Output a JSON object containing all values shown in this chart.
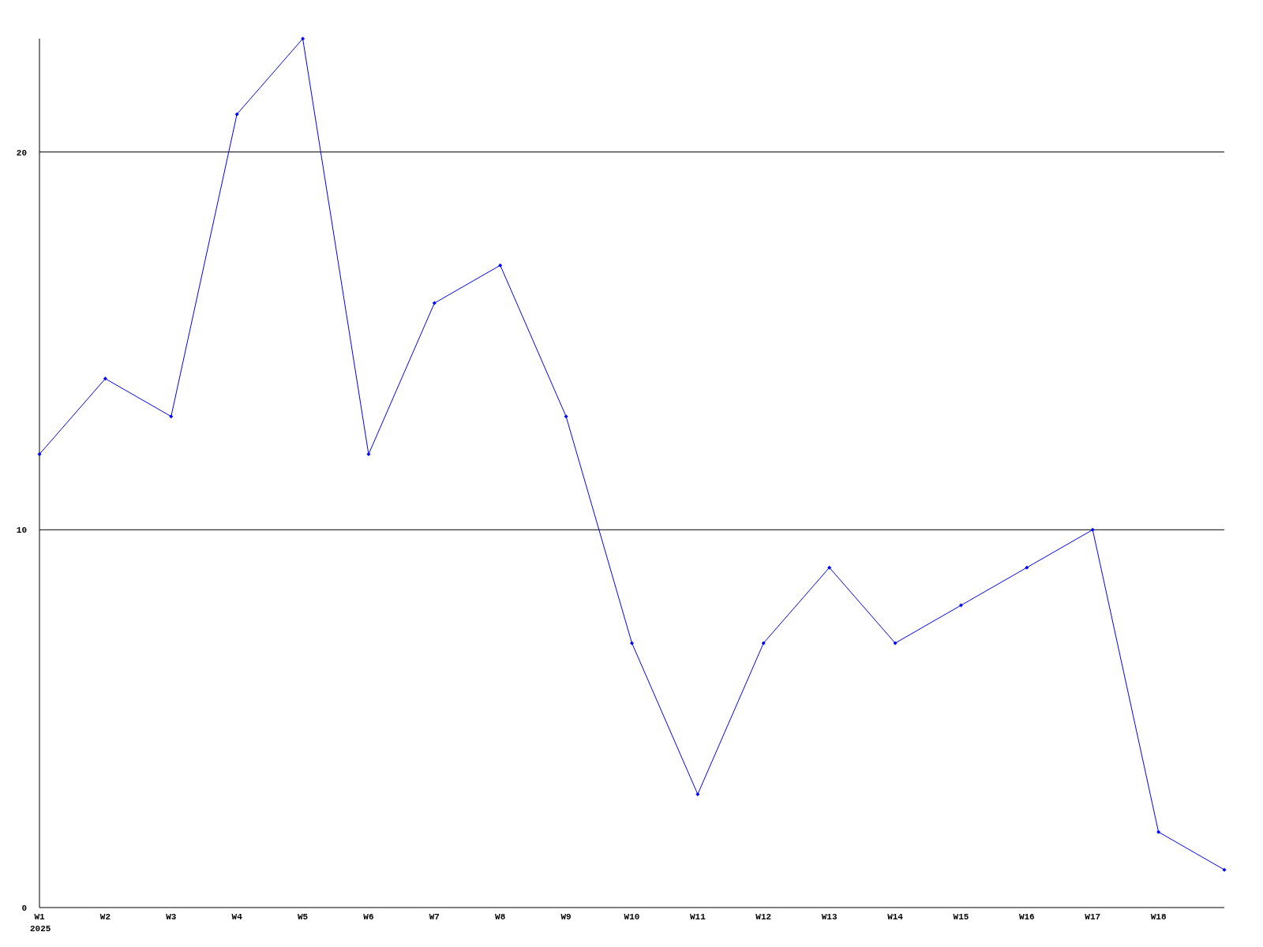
{
  "chart_data": {
    "type": "line",
    "categories": [
      "W1",
      "W2",
      "W3",
      "W4",
      "W5",
      "W6",
      "W7",
      "W8",
      "W9",
      "W10",
      "W11",
      "W12",
      "W13",
      "W14",
      "W15",
      "W16",
      "W17",
      "W18",
      null
    ],
    "series": [
      {
        "color": "#0000ff",
        "values": [
          12,
          14,
          13,
          21,
          23,
          12,
          16,
          17,
          13,
          7,
          3,
          7,
          9,
          7,
          8,
          9,
          10,
          2,
          1
        ]
      }
    ],
    "ylim": [
      0,
      23
    ],
    "yticks": [
      0,
      10,
      20
    ],
    "grid": "y",
    "marker": "diamond",
    "line_style": "solid",
    "annotations": [
      "2025"
    ]
  }
}
